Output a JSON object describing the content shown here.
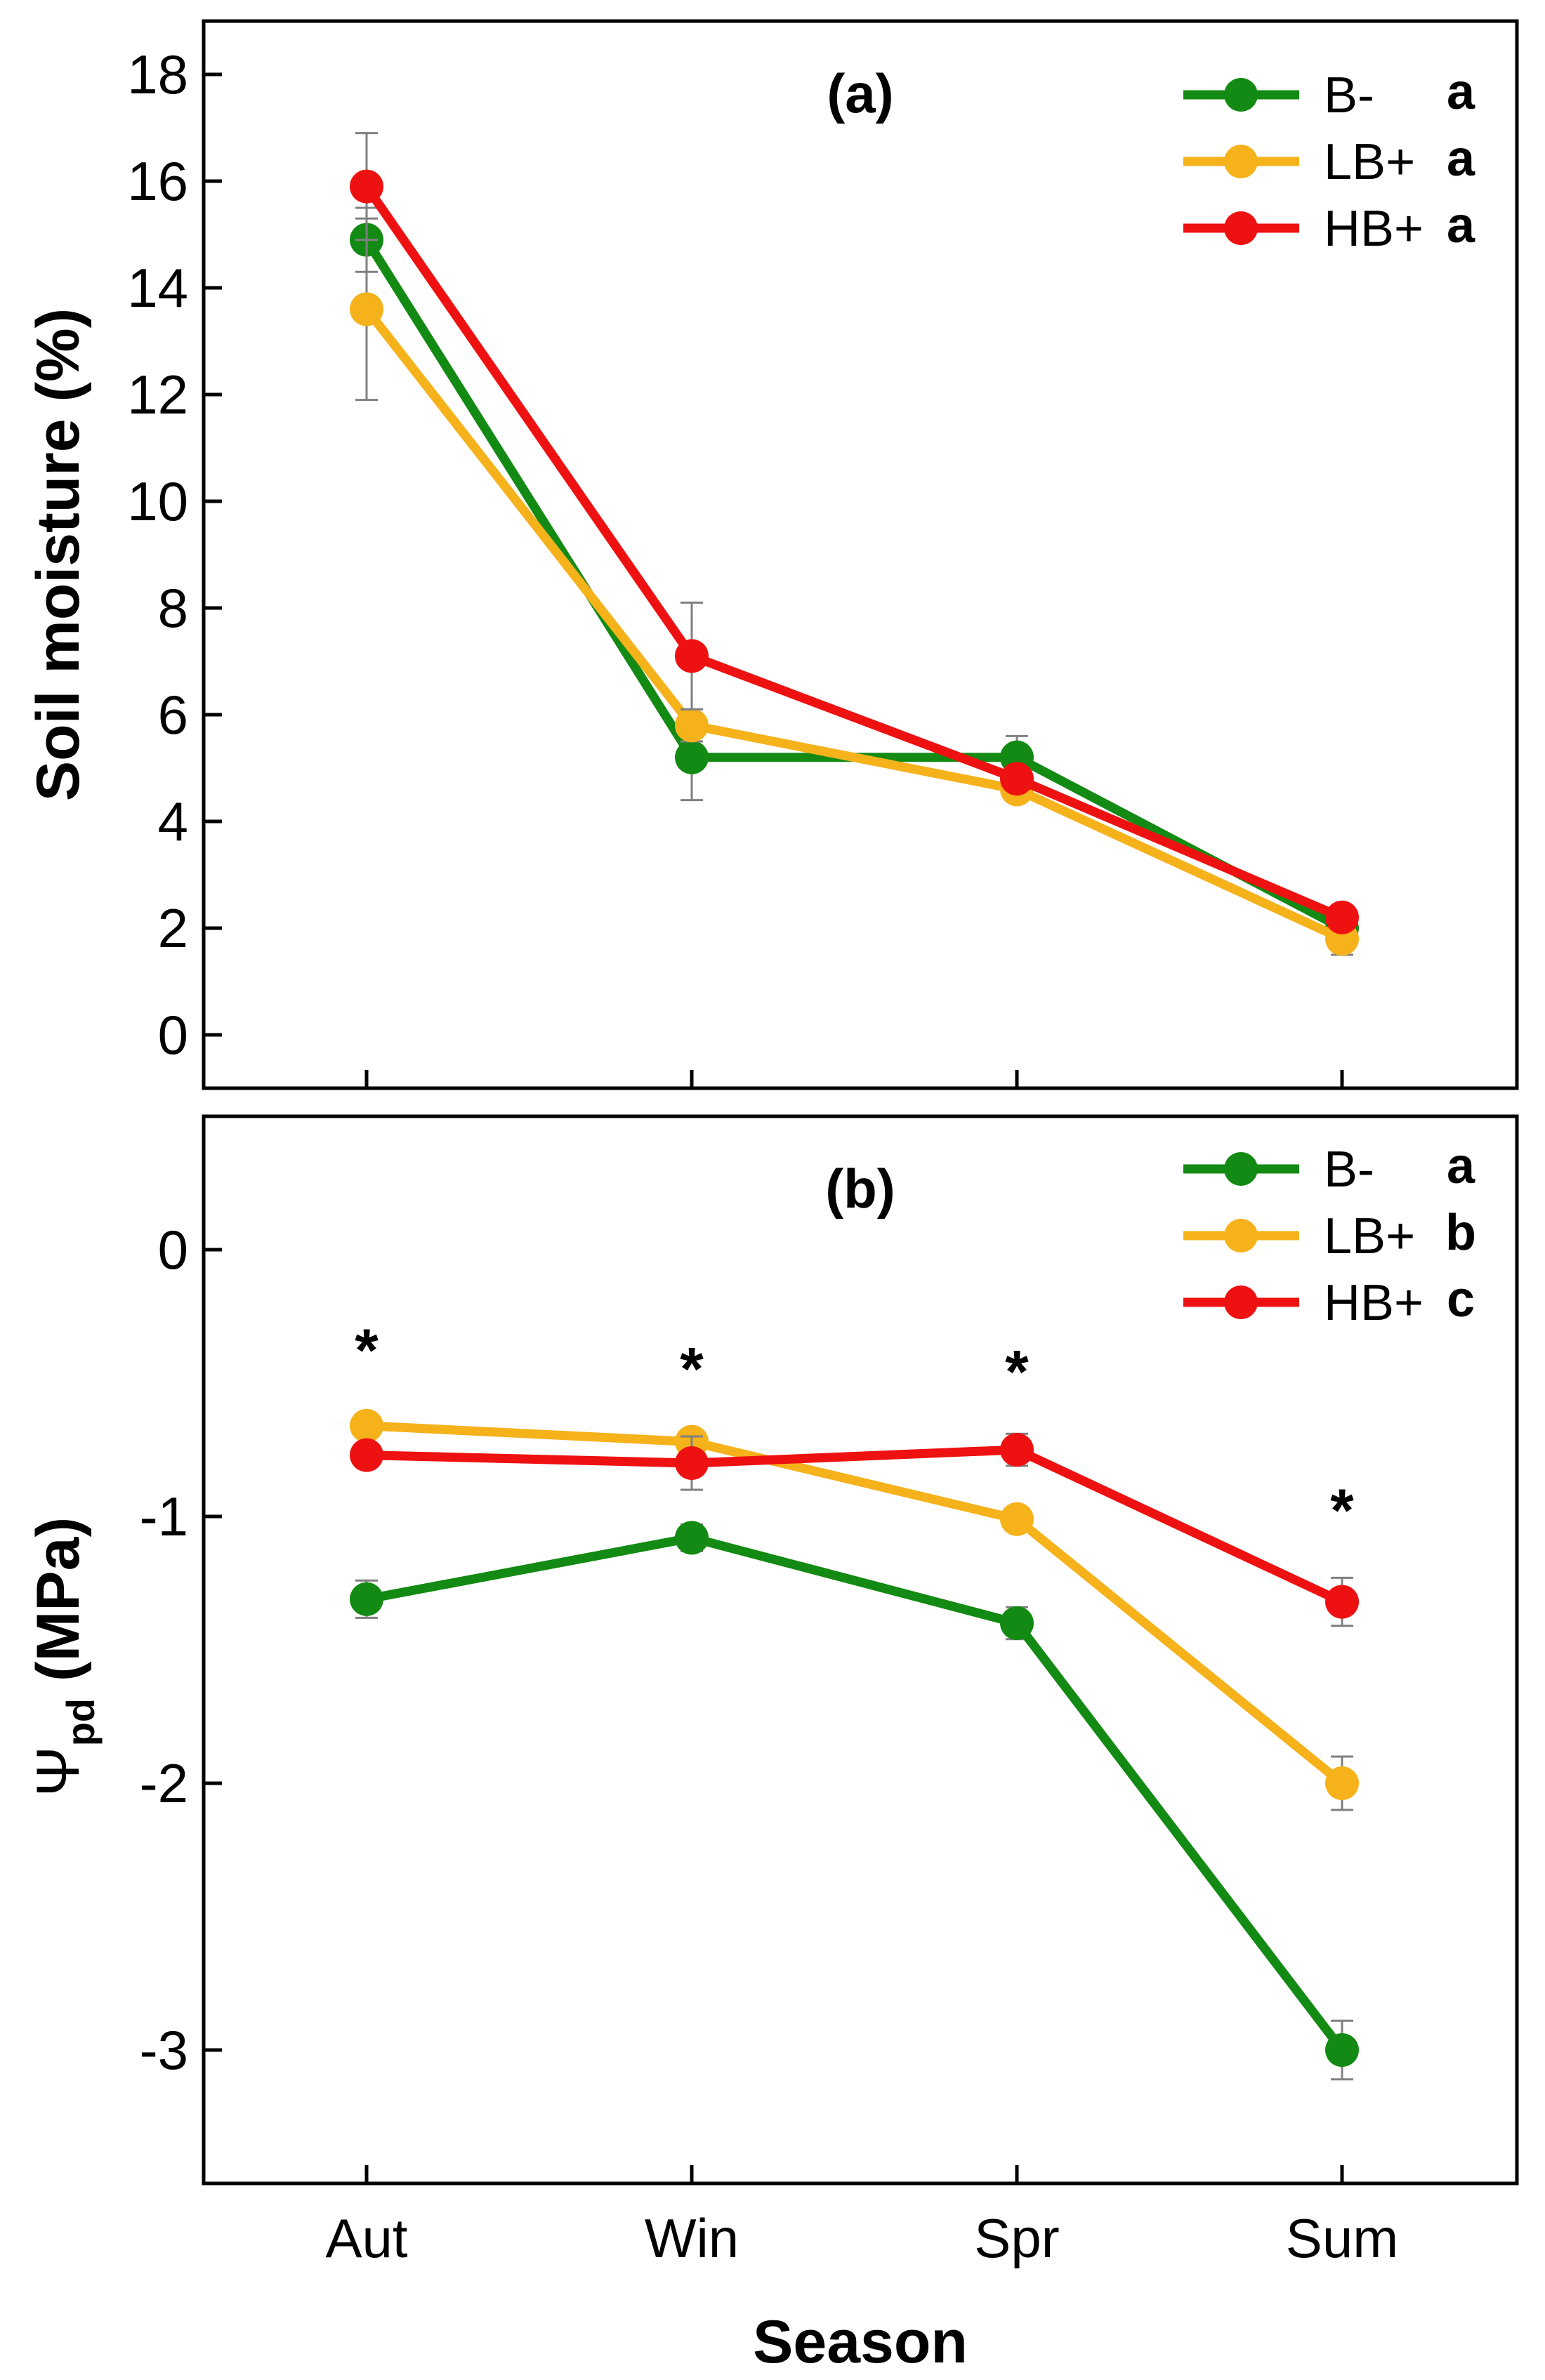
{
  "chart_data": [
    {
      "type": "line",
      "panel_label": "(a)",
      "categories": [
        "Aut",
        "Win",
        "Spr",
        "Sum"
      ],
      "ylabel": "Soil moisture (%)",
      "ylim": [
        -1,
        19
      ],
      "yticks": [
        0,
        2,
        4,
        6,
        8,
        10,
        12,
        14,
        16,
        18
      ],
      "grid": false,
      "legend_position": "top-right",
      "series": [
        {
          "name": "B-",
          "letter": "a",
          "color": "#138a13",
          "values": [
            14.9,
            5.2,
            5.2,
            2.0
          ],
          "errors": [
            0.6,
            0.8,
            0.4,
            0.3
          ]
        },
        {
          "name": "LB+",
          "letter": "a",
          "color": "#f5b21b",
          "values": [
            13.6,
            5.8,
            4.6,
            1.8
          ],
          "errors": [
            1.7,
            0.3,
            0.2,
            0.3
          ]
        },
        {
          "name": "HB+",
          "letter": "a",
          "color": "#ee1111",
          "values": [
            15.9,
            7.1,
            4.8,
            2.2
          ],
          "errors": [
            1.0,
            1.0,
            0.2,
            0.2
          ]
        }
      ]
    },
    {
      "type": "line",
      "panel_label": "(b)",
      "categories": [
        "Aut",
        "Win",
        "Spr",
        "Sum"
      ],
      "xlabel": "Season",
      "ylabel_symbol": "Ψ",
      "ylabel_subscript": "pd",
      "ylabel_unit": " (MPa)",
      "ylim": [
        -3.5,
        0.5
      ],
      "yticks": [
        0,
        -1,
        -2,
        -3
      ],
      "grid": false,
      "legend_position": "top-right",
      "significance_marker": "*",
      "significance_positions": [
        -0.35,
        -0.42,
        -0.43,
        -0.95
      ],
      "series": [
        {
          "name": "B-",
          "letter": "a",
          "color": "#138a13",
          "values": [
            -1.31,
            -1.08,
            -1.4,
            -3.0
          ],
          "errors": [
            0.07,
            0.05,
            0.06,
            0.11
          ]
        },
        {
          "name": "LB+",
          "letter": "b",
          "color": "#f5b21b",
          "values": [
            -0.66,
            -0.72,
            -1.01,
            -2.0
          ],
          "errors": [
            0.04,
            0.04,
            0.04,
            0.1
          ]
        },
        {
          "name": "HB+",
          "letter": "c",
          "color": "#ee1111",
          "values": [
            -0.77,
            -0.8,
            -0.75,
            -1.32
          ],
          "errors": [
            0.04,
            0.1,
            0.06,
            0.09
          ]
        }
      ]
    }
  ]
}
